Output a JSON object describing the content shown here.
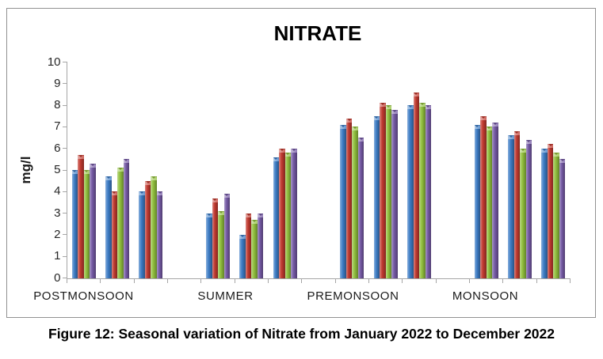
{
  "page": {
    "caption": "Figure 12: Seasonal variation of Nitrate from January 2022 to December 2022"
  },
  "chart_data": {
    "type": "bar",
    "title": "NITRATE",
    "ylabel": "mg/l",
    "ylim": [
      0,
      10
    ],
    "yticks": [
      0,
      1,
      2,
      3,
      4,
      5,
      6,
      7,
      8,
      9,
      10
    ],
    "grid": false,
    "legend": "none",
    "axis_color": "#a6a6a6",
    "bar_colors": [
      "#3d7cc5",
      "#c13a30",
      "#92c03e",
      "#755aa5"
    ],
    "series_names": [
      "series-blue",
      "series-red",
      "series-green",
      "series-purple"
    ],
    "categories": [
      "POSTMONSOON",
      "SUMMER",
      "PREMONSOON",
      "MONSOON"
    ],
    "clusters_per_category": 3,
    "groups": [
      {
        "category": "POSTMONSOON",
        "values": [
          5.0,
          5.7,
          5.0,
          5.3
        ]
      },
      {
        "category": "POSTMONSOON",
        "values": [
          4.7,
          4.0,
          5.1,
          5.5
        ]
      },
      {
        "category": "POSTMONSOON",
        "values": [
          4.0,
          4.5,
          4.7,
          4.0
        ]
      },
      {
        "category": "SUMMER",
        "values": [
          3.0,
          3.7,
          3.1,
          3.9
        ]
      },
      {
        "category": "SUMMER",
        "values": [
          2.0,
          3.0,
          2.7,
          3.0
        ]
      },
      {
        "category": "SUMMER",
        "values": [
          5.6,
          6.0,
          5.8,
          6.0
        ]
      },
      {
        "category": "PREMONSOON",
        "values": [
          7.1,
          7.4,
          7.0,
          6.5
        ]
      },
      {
        "category": "PREMONSOON",
        "values": [
          7.5,
          8.1,
          8.0,
          7.8
        ]
      },
      {
        "category": "PREMONSOON",
        "values": [
          8.0,
          8.6,
          8.1,
          8.0
        ]
      },
      {
        "category": "MONSOON",
        "values": [
          7.1,
          7.5,
          7.0,
          7.2
        ]
      },
      {
        "category": "MONSOON",
        "values": [
          6.6,
          6.8,
          6.0,
          6.4
        ]
      },
      {
        "category": "MONSOON",
        "values": [
          6.0,
          6.2,
          5.8,
          5.5
        ]
      }
    ]
  }
}
